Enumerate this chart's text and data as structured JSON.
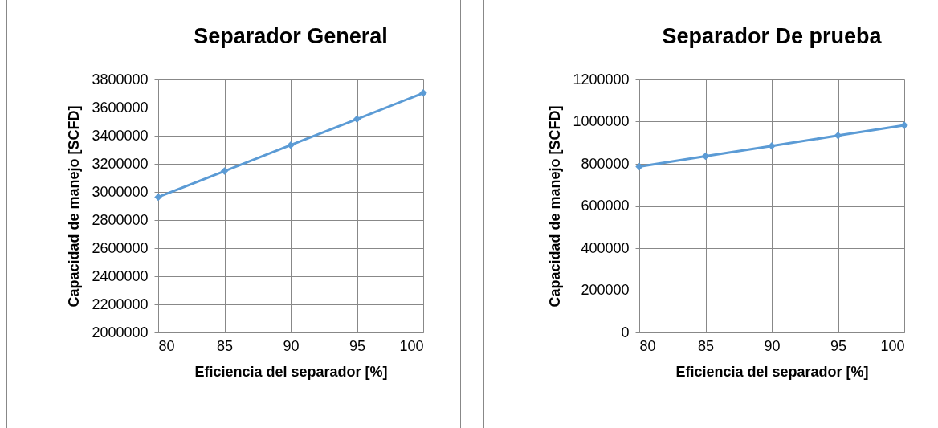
{
  "chart_data": [
    {
      "type": "line",
      "title": "Separador General",
      "xlabel": "Eficiencia del separador [%]",
      "ylabel": "Capacidad de manejo [SCFD]",
      "x": [
        80,
        85,
        90,
        95,
        100
      ],
      "series": [
        {
          "color": "#5b9bd5",
          "values": [
            2963000,
            3148000,
            3333000,
            3518000,
            3704000
          ]
        }
      ],
      "xlim": [
        80,
        100
      ],
      "xticks": [
        80,
        85,
        90,
        95,
        100
      ],
      "ylim": [
        2000000,
        3800000
      ],
      "yticks": [
        2000000,
        2200000,
        2400000,
        2600000,
        2800000,
        3000000,
        3200000,
        3400000,
        3600000,
        3800000
      ],
      "grid": true,
      "marker": "diamond",
      "line_style": "solid"
    },
    {
      "type": "line",
      "title": "Separador De prueba",
      "xlabel": "Eficiencia del separador [%]",
      "ylabel": "Capacidad de manejo [SCFD]",
      "x": [
        80,
        85,
        90,
        95,
        100
      ],
      "series": [
        {
          "color": "#5b9bd5",
          "values": [
            787000,
            836000,
            885000,
            934000,
            983000
          ]
        }
      ],
      "xlim": [
        80,
        100
      ],
      "xticks": [
        80,
        85,
        90,
        95,
        100
      ],
      "ylim": [
        0,
        1200000
      ],
      "yticks": [
        0,
        200000,
        400000,
        600000,
        800000,
        1000000,
        1200000
      ],
      "grid": true,
      "marker": "diamond",
      "line_style": "solid"
    }
  ]
}
